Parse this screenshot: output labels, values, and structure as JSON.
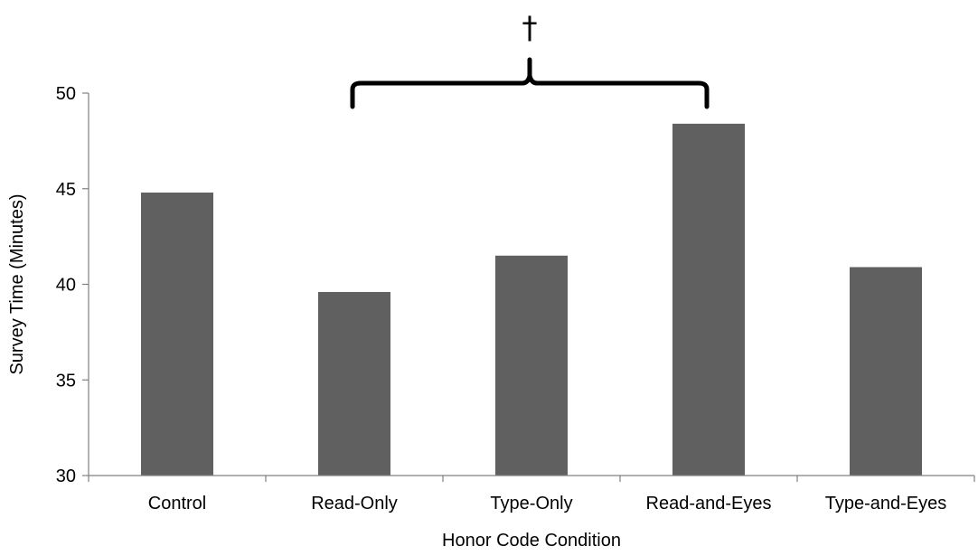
{
  "chart_data": {
    "type": "bar",
    "title": "",
    "xlabel": "Honor Code Condition",
    "ylabel": "Survey Time (Minutes)",
    "categories": [
      "Control",
      "Read-Only",
      "Type-Only",
      "Read-and-Eyes",
      "Type-and-Eyes"
    ],
    "values": [
      44.8,
      39.6,
      41.5,
      48.4,
      40.9
    ],
    "ylim": [
      30,
      50
    ],
    "yticks": [
      "30",
      "35",
      "40",
      "45",
      "50"
    ],
    "grid": false,
    "legend": "none",
    "bar_color": "#606060",
    "annotation": {
      "symbol": "†",
      "bracket_from": "Read-Only",
      "bracket_to": "Read-and-Eyes"
    }
  }
}
